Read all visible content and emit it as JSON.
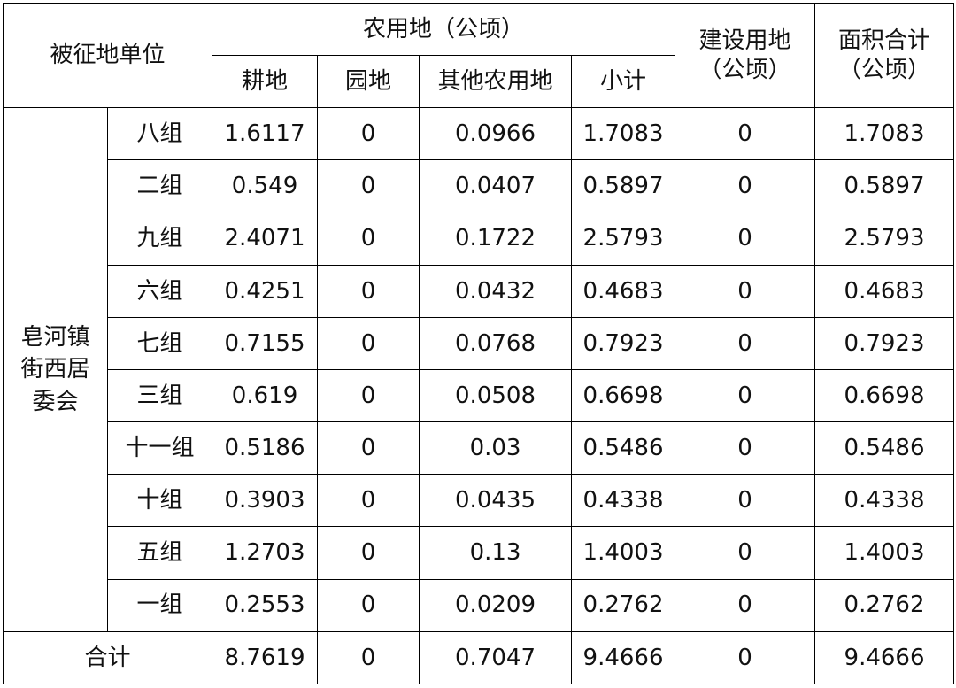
{
  "header": {
    "unit": "被征地单位",
    "farmland_group": "农用地（公顷）",
    "construction": "建设用地\n（公顷）",
    "total_area": "面积合计\n（公顷）",
    "cultivated": "耕地",
    "garden": "园地",
    "other_farm": "其他农用地",
    "subtotal": "小计"
  },
  "committee": "皂河镇\n街西居\n委会",
  "rows": [
    {
      "group": "八组",
      "cultivated": "1.6117",
      "garden": "0",
      "other": "0.0966",
      "subtotal": "1.7083",
      "construction": "0",
      "total": "1.7083"
    },
    {
      "group": "二组",
      "cultivated": "0.549",
      "garden": "0",
      "other": "0.0407",
      "subtotal": "0.5897",
      "construction": "0",
      "total": "0.5897"
    },
    {
      "group": "九组",
      "cultivated": "2.4071",
      "garden": "0",
      "other": "0.1722",
      "subtotal": "2.5793",
      "construction": "0",
      "total": "2.5793"
    },
    {
      "group": "六组",
      "cultivated": "0.4251",
      "garden": "0",
      "other": "0.0432",
      "subtotal": "0.4683",
      "construction": "0",
      "total": "0.4683"
    },
    {
      "group": "七组",
      "cultivated": "0.7155",
      "garden": "0",
      "other": "0.0768",
      "subtotal": "0.7923",
      "construction": "0",
      "total": "0.7923"
    },
    {
      "group": "三组",
      "cultivated": "0.619",
      "garden": "0",
      "other": "0.0508",
      "subtotal": "0.6698",
      "construction": "0",
      "total": "0.6698"
    },
    {
      "group": "十一组",
      "cultivated": "0.5186",
      "garden": "0",
      "other": "0.03",
      "subtotal": "0.5486",
      "construction": "0",
      "total": "0.5486"
    },
    {
      "group": "十组",
      "cultivated": "0.3903",
      "garden": "0",
      "other": "0.0435",
      "subtotal": "0.4338",
      "construction": "0",
      "total": "0.4338"
    },
    {
      "group": "五组",
      "cultivated": "1.2703",
      "garden": "0",
      "other": "0.13",
      "subtotal": "1.4003",
      "construction": "0",
      "total": "1.4003"
    },
    {
      "group": "一组",
      "cultivated": "0.2553",
      "garden": "0",
      "other": "0.0209",
      "subtotal": "0.2762",
      "construction": "0",
      "total": "0.2762"
    }
  ],
  "total": {
    "label": "合计",
    "cultivated": "8.7619",
    "garden": "0",
    "other": "0.7047",
    "subtotal": "9.4666",
    "construction": "0",
    "total": "9.4666"
  }
}
